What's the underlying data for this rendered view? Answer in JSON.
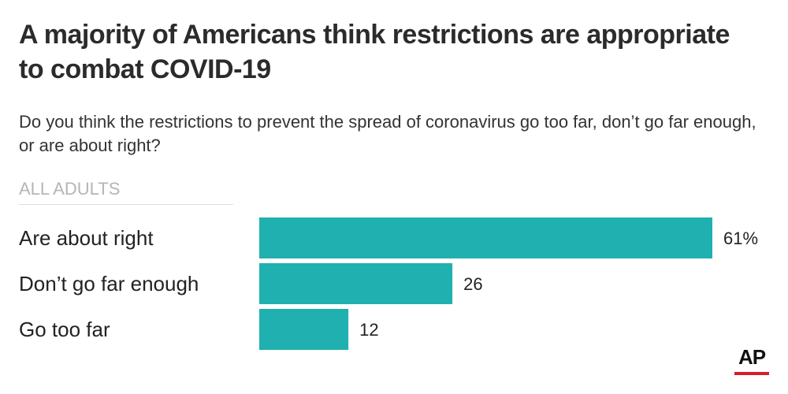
{
  "header": {
    "title": "A majority of Americans think restrictions are appropriate to combat COVID-19",
    "subtitle": "Do you think the restrictions to prevent the spread of coronavirus go too far, don’t go far enough, or are about right?",
    "group_label": "ALL ADULTS"
  },
  "chart_data": {
    "type": "bar",
    "orientation": "horizontal",
    "categories": [
      "Are about right",
      "Don’t go far enough",
      "Go too far"
    ],
    "values": [
      61,
      26,
      12
    ],
    "value_labels": [
      "61%",
      "26",
      "12"
    ],
    "xlim": [
      0,
      61
    ],
    "grid": false,
    "bar_color": "#20b0b0"
  },
  "logo": {
    "text": "AP",
    "accent_color": "#d61f26"
  }
}
